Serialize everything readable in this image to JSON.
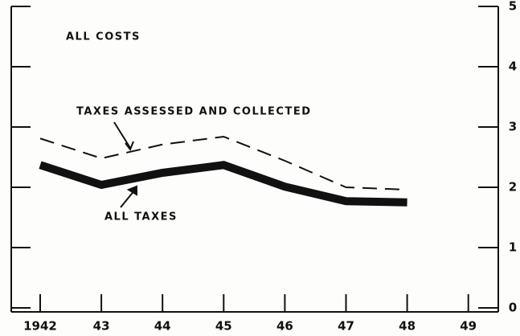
{
  "chart_data": {
    "type": "line",
    "title": "ALL COSTS",
    "categories": [
      "1942",
      "43",
      "44",
      "45",
      "46",
      "47",
      "48",
      "49"
    ],
    "series": [
      {
        "name": "TAXES ASSESSED AND COLLECTED",
        "color": "#111111",
        "dash": true,
        "values": [
          2.81,
          2.48,
          2.71,
          2.84,
          2.44,
          2.0,
          1.96,
          null
        ]
      },
      {
        "name": "ALL TAXES",
        "color": "#111111",
        "dash": false,
        "values": [
          2.37,
          2.04,
          2.24,
          2.37,
          2.01,
          1.77,
          1.75,
          null
        ]
      }
    ],
    "ylim": [
      0,
      5
    ],
    "yticks": [
      0,
      1,
      2,
      3,
      4,
      5
    ],
    "grid": false
  }
}
